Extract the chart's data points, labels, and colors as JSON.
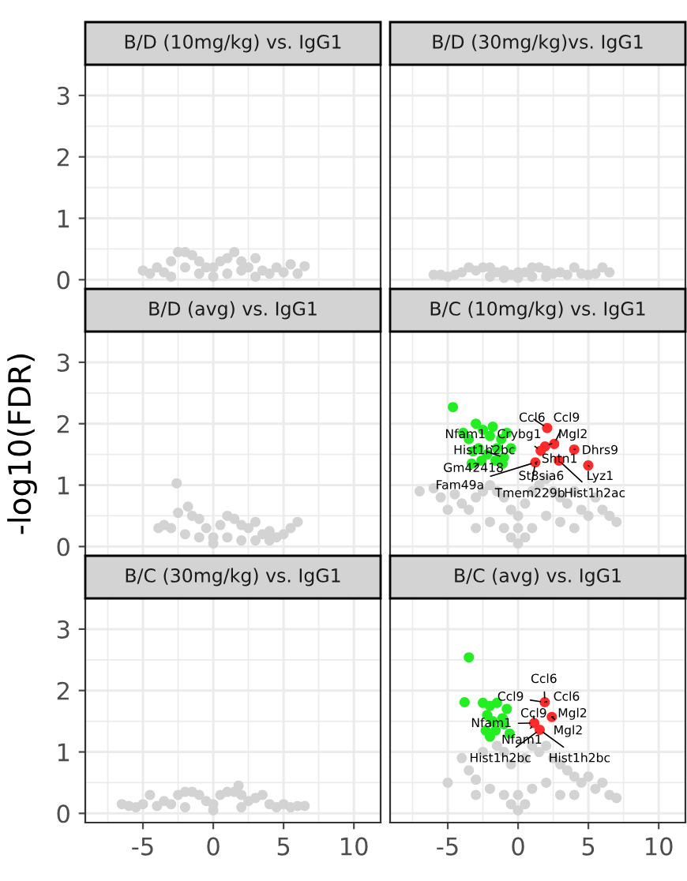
{
  "chart_data": [
    {
      "type": "scatter",
      "title": "B/D (10mg/kg) vs. IgG1",
      "xlim": [
        -9.1,
        11.9
      ],
      "ylim": [
        -0.15,
        3.5
      ],
      "xticks": [
        -5,
        0,
        5,
        10
      ],
      "yticks": [
        0,
        1,
        2,
        3
      ],
      "tick_labels": "y",
      "grid": true,
      "marker": "circle",
      "series": [
        {
          "color": "#d3d3d3",
          "x": [
            -5.0,
            -4.5,
            -4.0,
            -3.5,
            -3.0,
            -2.5,
            -2.0,
            -1.5,
            -1.0,
            -0.5,
            0.0,
            0.5,
            1.0,
            1.5,
            2.0,
            2.5,
            3.0,
            3.5,
            4.0,
            4.5,
            5.0,
            5.5,
            6.0,
            6.5,
            -1.0,
            1.0,
            -2.0,
            2.0,
            0.0,
            -3.0,
            3.0
          ],
          "values": [
            0.15,
            0.1,
            0.2,
            0.12,
            0.3,
            0.45,
            0.45,
            0.4,
            0.3,
            0.2,
            0.05,
            0.3,
            0.35,
            0.45,
            0.3,
            0.2,
            0.35,
            0.15,
            0.1,
            0.2,
            0.12,
            0.25,
            0.1,
            0.22,
            0.1,
            0.1,
            0.2,
            0.15,
            0.2,
            0.05,
            0.05
          ]
        }
      ]
    },
    {
      "type": "scatter",
      "title": "B/D (30mg/kg)vs. IgG1",
      "xlim": [
        -9.1,
        11.9
      ],
      "ylim": [
        -0.15,
        3.5
      ],
      "xticks": [
        -5,
        0,
        5,
        10
      ],
      "yticks": [
        0,
        1,
        2,
        3
      ],
      "tick_labels": false,
      "grid": true,
      "marker": "circle",
      "series": [
        {
          "color": "#d3d3d3",
          "x": [
            -6.0,
            -5.5,
            -5.0,
            -4.5,
            -4.0,
            -3.5,
            -3.0,
            -2.5,
            -2.0,
            -1.5,
            -1.0,
            -0.5,
            0.0,
            0.5,
            1.0,
            1.5,
            2.0,
            2.5,
            3.0,
            3.5,
            4.0,
            4.5,
            5.0,
            5.5,
            6.0,
            6.5,
            -2.0,
            2.0,
            0.0,
            -1.0,
            1.0
          ],
          "values": [
            0.08,
            0.08,
            0.05,
            0.08,
            0.12,
            0.2,
            0.15,
            0.2,
            0.2,
            0.12,
            0.15,
            0.08,
            0.03,
            0.12,
            0.2,
            0.2,
            0.15,
            0.1,
            0.12,
            0.08,
            0.2,
            0.1,
            0.08,
            0.1,
            0.2,
            0.12,
            0.05,
            0.05,
            0.12,
            0.03,
            0.05
          ]
        }
      ]
    },
    {
      "type": "scatter",
      "title": "B/D (avg) vs. IgG1",
      "ylabel": "-log10(FDR)",
      "xlim": [
        -9.1,
        11.9
      ],
      "ylim": [
        -0.15,
        3.5
      ],
      "xticks": [
        -5,
        0,
        5,
        10
      ],
      "yticks": [
        0,
        1,
        2,
        3
      ],
      "tick_labels": "y",
      "grid": true,
      "marker": "circle",
      "series": [
        {
          "color": "#d3d3d3",
          "x": [
            -3.9,
            -3.5,
            -3.0,
            -2.6,
            -2.5,
            -2.0,
            -1.8,
            -1.5,
            -1.0,
            -0.5,
            0.0,
            0.5,
            0.8,
            1.0,
            1.5,
            2.0,
            2.5,
            3.0,
            3.5,
            4.0,
            4.5,
            5.0,
            5.5,
            6.0,
            -2.0,
            -1.0,
            0.0,
            1.0,
            2.0,
            3.0,
            4.0
          ],
          "values": [
            0.3,
            0.35,
            0.3,
            1.03,
            0.55,
            null,
            0.65,
            0.5,
            0.45,
            0.3,
            0.05,
            0.35,
            null,
            0.5,
            0.45,
            0.35,
            0.3,
            0.4,
            0.2,
            0.25,
            0.15,
            0.2,
            0.3,
            0.4,
            0.2,
            0.15,
            0.15,
            0.15,
            0.1,
            0.1,
            0.1
          ]
        }
      ]
    },
    {
      "type": "scatter",
      "title": "B/C (10mg/kg) vs. IgG1",
      "xlim": [
        -9.1,
        11.9
      ],
      "ylim": [
        -0.15,
        3.5
      ],
      "xticks": [
        -5,
        0,
        5,
        10
      ],
      "yticks": [
        0,
        1,
        2,
        3
      ],
      "tick_labels": false,
      "grid": true,
      "marker": "circle",
      "series": [
        {
          "color": "#d3d3d3",
          "x": [
            -7.0,
            -6.0,
            -5.5,
            -5.0,
            -4.5,
            -4.0,
            -3.5,
            -3.0,
            -2.5,
            -2.0,
            -1.5,
            -1.0,
            -0.5,
            0.0,
            0.5,
            1.0,
            1.5,
            2.0,
            2.5,
            3.0,
            3.5,
            4.0,
            4.5,
            5.0,
            5.5,
            6.0,
            6.5,
            7.0,
            -2.0,
            -1.0,
            0.0,
            1.0,
            2.0,
            3.0,
            -3.0,
            4.0,
            0.0,
            -0.5,
            0.5
          ],
          "values": [
            0.9,
            0.95,
            0.8,
            0.6,
            0.85,
            0.7,
            0.6,
            0.8,
            0.9,
            1.0,
            0.9,
            0.8,
            0.6,
            0.3,
            0.7,
            0.9,
            1.0,
            1.1,
            0.9,
            0.8,
            0.7,
            0.9,
            0.6,
            0.5,
            0.8,
            0.6,
            0.5,
            0.4,
            0.4,
            0.3,
            0.05,
            0.3,
            0.5,
            0.4,
            0.3,
            0.3,
            0.5,
            0.15,
            0.15
          ]
        },
        {
          "color": "#22ee22",
          "x": [
            -4.63,
            -3.9,
            -3.5,
            -3.3,
            -3.0,
            -2.8,
            -2.5,
            -2.2,
            -2.0,
            -1.8,
            -1.5,
            -1.2,
            -1.0,
            -0.8,
            -0.5,
            -3.2,
            -2.6,
            -1.6,
            -1.1
          ],
          "values": [
            2.27,
            1.85,
            1.75,
            1.35,
            2.0,
            1.6,
            1.9,
            1.5,
            1.8,
            1.95,
            1.6,
            1.75,
            1.45,
            1.85,
            1.6,
            1.55,
            1.4,
            1.4,
            1.35
          ]
        },
        {
          "color": "#ff2a2a",
          "x": [
            2.07,
            1.61,
            2.57,
            3.99,
            4.99,
            1.23,
            1.92,
            2.9
          ],
          "values": [
            1.93,
            1.56,
            1.67,
            1.58,
            1.32,
            1.37,
            1.63,
            1.4
          ]
        }
      ],
      "annotations": [
        {
          "text": "Ccl6",
          "x": 2.07,
          "y": 1.93
        },
        {
          "text": "Ccl9",
          "x": 2.57,
          "y": 1.67
        },
        {
          "text": "Nfam1",
          "x": -1.5,
          "y": 1.6
        },
        {
          "text": "Crybg1",
          "x": 1.61,
          "y": 1.56
        },
        {
          "text": "Mgl2",
          "x": 1.92,
          "y": 1.63
        },
        {
          "text": "Hist1h2bc",
          "x": -1.0,
          "y": 1.45
        },
        {
          "text": "Dhrs9",
          "x": 3.99,
          "y": 1.58
        },
        {
          "text": "Shtn1",
          "x": 1.23,
          "y": 1.37
        },
        {
          "text": "Gm42418",
          "x": -2.6,
          "y": 1.4
        },
        {
          "text": "St8sia6",
          "x": 1.23,
          "y": 1.37
        },
        {
          "text": "Lyz1",
          "x": 4.99,
          "y": 1.32
        },
        {
          "text": "Fam49a",
          "x": 1.23,
          "y": 1.37
        },
        {
          "text": "Tmem229b",
          "x": 1.23,
          "y": 1.37
        },
        {
          "text": "Hist1h2ac",
          "x": 2.9,
          "y": 1.4
        }
      ]
    },
    {
      "type": "scatter",
      "title": "B/C (30mg/kg) vs. IgG1",
      "xlim": [
        -9.1,
        11.9
      ],
      "ylim": [
        -0.15,
        3.5
      ],
      "xticks": [
        -5,
        0,
        5,
        10
      ],
      "yticks": [
        0,
        1,
        2,
        3
      ],
      "grid": true,
      "marker": "circle",
      "series": [
        {
          "color": "#d3d3d3",
          "x": [
            -6.5,
            -6.0,
            -5.5,
            -5.0,
            -4.5,
            -4.0,
            -3.5,
            -3.0,
            -2.5,
            -2.0,
            -1.5,
            -1.0,
            -0.5,
            0.0,
            0.5,
            1.0,
            1.5,
            1.8,
            2.0,
            2.5,
            3.0,
            3.5,
            4.0,
            4.5,
            5.0,
            5.5,
            6.0,
            6.5,
            -2.0,
            0.0,
            2.0
          ],
          "values": [
            0.15,
            0.12,
            0.1,
            0.15,
            0.3,
            0.12,
            0.2,
            0.15,
            0.3,
            0.35,
            0.35,
            0.3,
            0.2,
            0.05,
            0.3,
            0.35,
            0.35,
            0.45,
            0.3,
            0.2,
            0.25,
            0.3,
            0.15,
            0.1,
            0.15,
            0.1,
            0.12,
            0.12,
            0.1,
            0.15,
            0.1
          ]
        }
      ]
    },
    {
      "type": "scatter",
      "title": "B/C (avg) vs. IgG1",
      "xlim": [
        -9.1,
        11.9
      ],
      "ylim": [
        -0.15,
        3.5
      ],
      "xticks": [
        -5,
        0,
        5,
        10
      ],
      "yticks": [
        0,
        1,
        2,
        3
      ],
      "tick_labels": "x",
      "grid": true,
      "marker": "circle",
      "series": [
        {
          "color": "#d3d3d3",
          "x": [
            -5.0,
            -4.0,
            -3.5,
            -3.0,
            -2.5,
            -2.0,
            -1.5,
            -1.0,
            -0.5,
            0.0,
            0.5,
            1.0,
            1.5,
            2.0,
            2.5,
            3.0,
            3.5,
            4.0,
            4.5,
            5.0,
            5.5,
            6.0,
            6.5,
            7.0,
            -2.0,
            -1.0,
            0.0,
            1.0,
            2.0,
            3.0,
            4.0,
            -3.0,
            0.5,
            -0.5
          ],
          "values": [
            0.5,
            0.9,
            0.7,
            0.55,
            1.0,
            null,
            1.1,
            1.0,
            0.8,
            0.3,
            0.9,
            1.1,
            1.0,
            1.1,
            0.9,
            0.8,
            0.7,
            0.6,
            0.5,
            0.6,
            0.4,
            0.5,
            0.3,
            0.25,
            0.4,
            0.3,
            0.05,
            0.4,
            0.5,
            0.3,
            0.3,
            0.3,
            0.15,
            0.15
          ]
        },
        {
          "color": "#22ee22",
          "x": [
            -3.5,
            -3.8,
            -2.5,
            -2.2,
            -2.0,
            -1.8,
            -1.5,
            -1.2,
            -1.0,
            -0.8,
            -2.3,
            -1.6,
            -1.1,
            -2.0,
            -0.6
          ],
          "values": [
            2.54,
            1.81,
            1.8,
            1.6,
            1.75,
            1.5,
            1.8,
            null,
            1.45,
            1.7,
            1.35,
            1.35,
            1.55,
            1.25,
            1.3
          ]
        },
        {
          "color": "#ff2a2a",
          "x": [
            1.9,
            2.4,
            1.15,
            1.54
          ],
          "values": [
            1.81,
            1.57,
            1.47,
            1.36
          ]
        }
      ],
      "annotations": [
        {
          "text": "Ccl6",
          "x": 1.9,
          "y": 1.81
        },
        {
          "text": "Ccl9",
          "x": 1.9,
          "y": 1.81
        },
        {
          "text": "Ccl6",
          "x": 1.9,
          "y": 1.81
        },
        {
          "text": "Ccl9",
          "x": 1.15,
          "y": 1.47
        },
        {
          "text": "Mgl2",
          "x": 2.4,
          "y": 1.57
        },
        {
          "text": "Nfam1",
          "x": 1.15,
          "y": 1.47
        },
        {
          "text": "Mgl2",
          "x": 2.4,
          "y": 1.57
        },
        {
          "text": "Nfam1",
          "x": 1.15,
          "y": 1.47
        },
        {
          "text": "Hist1h2bc",
          "x": 1.54,
          "y": 1.36
        },
        {
          "text": "Hist1h2bc",
          "x": 1.54,
          "y": 1.36
        }
      ]
    }
  ]
}
